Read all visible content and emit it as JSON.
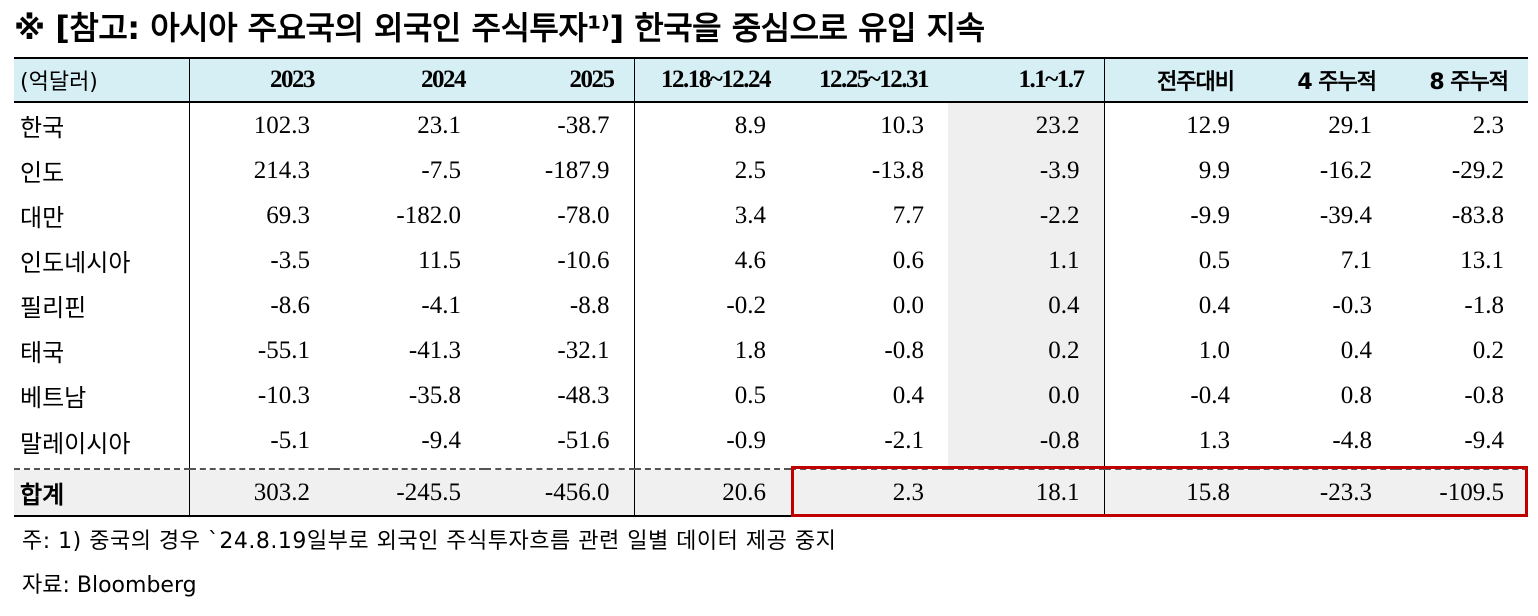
{
  "title": "※ [참고: 아시아 주요국의 외국인 주식투자¹⁾] 한국을 중심으로 유입 지속",
  "table": {
    "unit_label": "(억달러)",
    "columns": [
      "2023",
      "2024",
      "2025",
      "12.18~12.24",
      "12.25~12.31",
      "1.1~1.7",
      "전주대비",
      "4 주누적",
      "8 주누적"
    ],
    "rows": [
      {
        "name": "한국",
        "values": [
          "102.3",
          "23.1",
          "-38.7",
          "8.9",
          "10.3",
          "23.2",
          "12.9",
          "29.1",
          "2.3"
        ]
      },
      {
        "name": "인도",
        "values": [
          "214.3",
          "-7.5",
          "-187.9",
          "2.5",
          "-13.8",
          "-3.9",
          "9.9",
          "-16.2",
          "-29.2"
        ]
      },
      {
        "name": "대만",
        "values": [
          "69.3",
          "-182.0",
          "-78.0",
          "3.4",
          "7.7",
          "-2.2",
          "-9.9",
          "-39.4",
          "-83.8"
        ]
      },
      {
        "name": "인도네시아",
        "values": [
          "-3.5",
          "11.5",
          "-10.6",
          "4.6",
          "0.6",
          "1.1",
          "0.5",
          "7.1",
          "13.1"
        ]
      },
      {
        "name": "필리핀",
        "values": [
          "-8.6",
          "-4.1",
          "-8.8",
          "-0.2",
          "0.0",
          "0.4",
          "0.4",
          "-0.3",
          "-1.8"
        ]
      },
      {
        "name": "태국",
        "values": [
          "-55.1",
          "-41.3",
          "-32.1",
          "1.8",
          "-0.8",
          "0.2",
          "1.0",
          "0.4",
          "0.2"
        ]
      },
      {
        "name": "베트남",
        "values": [
          "-10.3",
          "-35.8",
          "-48.3",
          "0.5",
          "0.4",
          "0.0",
          "-0.4",
          "0.8",
          "-0.8"
        ]
      },
      {
        "name": "말레이시아",
        "values": [
          "-5.1",
          "-9.4",
          "-51.6",
          "-0.9",
          "-2.1",
          "-0.8",
          "1.3",
          "-4.8",
          "-9.4"
        ]
      }
    ],
    "total": {
      "name": "합계",
      "values": [
        "303.2",
        "-245.5",
        "-456.0",
        "20.6",
        "2.3",
        "18.1",
        "15.8",
        "-23.3",
        "-109.5"
      ]
    }
  },
  "notes": {
    "note1": "주: 1) 중국의 경우 `24.8.19일부로 외국인 주식투자흐름 관련 일별 데이터 제공 중지",
    "source": "자료: Bloomberg"
  },
  "colors": {
    "header_bg": "#d6eff5",
    "highlight_bg": "#efefef",
    "total_bg": "#f0f0f0",
    "box": "#c00000"
  }
}
